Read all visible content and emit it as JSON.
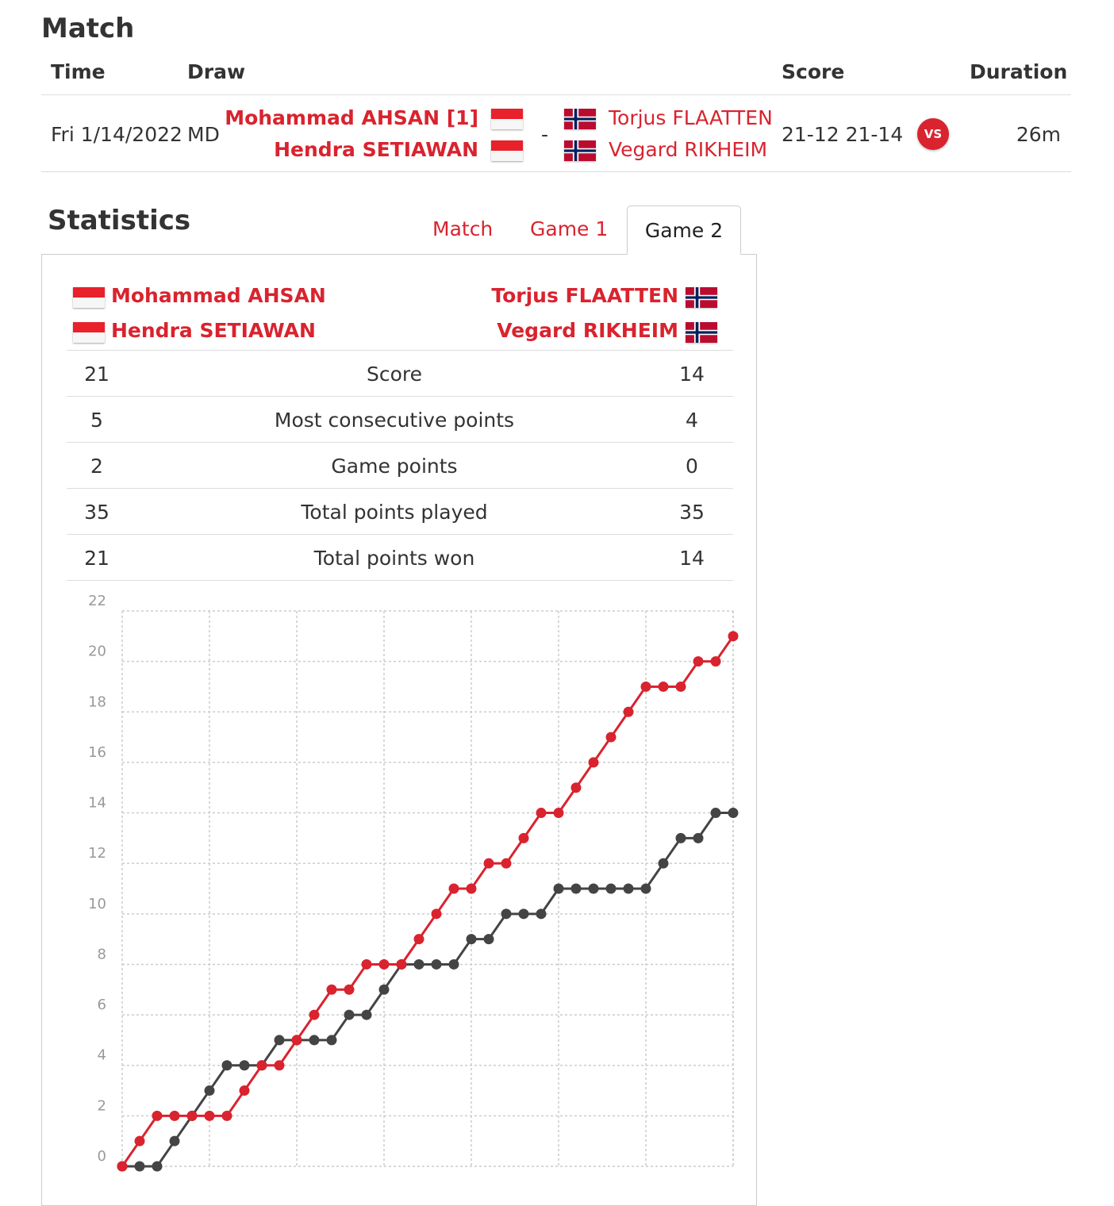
{
  "match": {
    "title": "Match",
    "headers": {
      "time": "Time",
      "draw": "Draw",
      "score": "Score",
      "duration": "Duration"
    },
    "row": {
      "time": "Fri 1/14/2022",
      "draw": "MD",
      "team1": [
        "Mohammad AHSAN [1]",
        "Hendra SETIAWAN"
      ],
      "separator": "-",
      "team2": [
        "Torjus FLAATTEN",
        "Vegard RIKHEIM"
      ],
      "score": "21-12 21-14",
      "vs_label": "VS",
      "duration": "26m"
    }
  },
  "statistics": {
    "title": "Statistics",
    "tabs": [
      "Match",
      "Game 1",
      "Game 2"
    ],
    "active_tab": "Game 2",
    "team1": [
      "Mohammad AHSAN",
      "Hendra SETIAWAN"
    ],
    "team2": [
      "Torjus FLAATTEN",
      "Vegard RIKHEIM"
    ],
    "rows": [
      {
        "left": "21",
        "label": "Score",
        "right": "14"
      },
      {
        "left": "5",
        "label": "Most consecutive points",
        "right": "4"
      },
      {
        "left": "2",
        "label": "Game points",
        "right": "0"
      },
      {
        "left": "35",
        "label": "Total points played",
        "right": "35"
      },
      {
        "left": "21",
        "label": "Total points won",
        "right": "14"
      }
    ]
  },
  "colors": {
    "accent": "#d9232e",
    "series_dark": "#444444",
    "grid": "#cccccc"
  },
  "flags": {
    "team1": "indonesia-flag",
    "team2": "norway-flag"
  },
  "chart_data": {
    "type": "line",
    "x": [
      0,
      1,
      2,
      3,
      4,
      5,
      6,
      7,
      8,
      9,
      10,
      11,
      12,
      13,
      14,
      15,
      16,
      17,
      18,
      19,
      20,
      21,
      22,
      23,
      24,
      25,
      26,
      27,
      28,
      29,
      30,
      31,
      32,
      33,
      34,
      35
    ],
    "series": [
      {
        "values": [
          0,
          1,
          2,
          2,
          2,
          2,
          2,
          3,
          4,
          4,
          5,
          6,
          7,
          7,
          8,
          8,
          8,
          9,
          10,
          11,
          11,
          12,
          12,
          13,
          14,
          14,
          15,
          16,
          17,
          18,
          19,
          19,
          19,
          20,
          20,
          21
        ]
      },
      {
        "values": [
          0,
          0,
          0,
          1,
          2,
          3,
          4,
          4,
          4,
          5,
          5,
          5,
          5,
          6,
          6,
          7,
          8,
          8,
          8,
          8,
          9,
          9,
          10,
          10,
          10,
          11,
          11,
          11,
          11,
          11,
          11,
          12,
          13,
          13,
          14,
          14
        ]
      }
    ],
    "yticks": [
      0,
      2,
      4,
      6,
      8,
      10,
      12,
      14,
      16,
      18,
      20,
      22
    ],
    "ylim": [
      0,
      22
    ],
    "xlim": [
      0,
      35
    ],
    "grid": true
  }
}
